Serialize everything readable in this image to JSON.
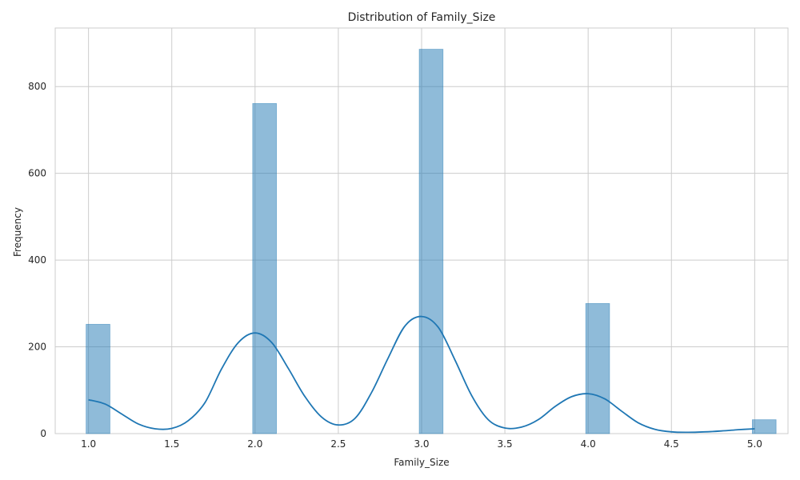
{
  "chart_data": {
    "type": "bar",
    "title": "Distribution of Family_Size",
    "xlabel": "Family_Size",
    "ylabel": "Frequency",
    "xlim": [
      0.8,
      5.2
    ],
    "ylim": [
      0,
      935
    ],
    "grid": true,
    "xticks": [
      "1.0",
      "1.5",
      "2.0",
      "2.5",
      "3.0",
      "3.5",
      "4.0",
      "4.5",
      "5.0"
    ],
    "yticks": [
      "0",
      "200",
      "400",
      "600",
      "800"
    ],
    "bin_width": 0.1429,
    "bins": [
      {
        "x": 1.0,
        "count": 252
      },
      {
        "x": 2.0,
        "count": 761
      },
      {
        "x": 3.0,
        "count": 886
      },
      {
        "x": 4.0,
        "count": 300
      },
      {
        "x": 5.0,
        "count": 32
      }
    ],
    "kde": {
      "x": [
        1.0,
        1.1,
        1.2,
        1.3,
        1.4,
        1.5,
        1.6,
        1.7,
        1.8,
        1.9,
        2.0,
        2.1,
        2.2,
        2.3,
        2.4,
        2.5,
        2.6,
        2.7,
        2.8,
        2.9,
        3.0,
        3.1,
        3.2,
        3.3,
        3.4,
        3.5,
        3.6,
        3.7,
        3.8,
        3.9,
        4.0,
        4.1,
        4.2,
        4.3,
        4.4,
        4.5,
        4.6,
        4.7,
        4.8,
        4.9,
        5.0
      ],
      "y": [
        78,
        68,
        45,
        22,
        11,
        12,
        30,
        72,
        150,
        210,
        232,
        210,
        150,
        85,
        38,
        20,
        35,
        95,
        175,
        248,
        270,
        245,
        170,
        88,
        32,
        13,
        15,
        32,
        62,
        85,
        92,
        80,
        52,
        25,
        10,
        4,
        3,
        4,
        6,
        9,
        11
      ]
    }
  }
}
